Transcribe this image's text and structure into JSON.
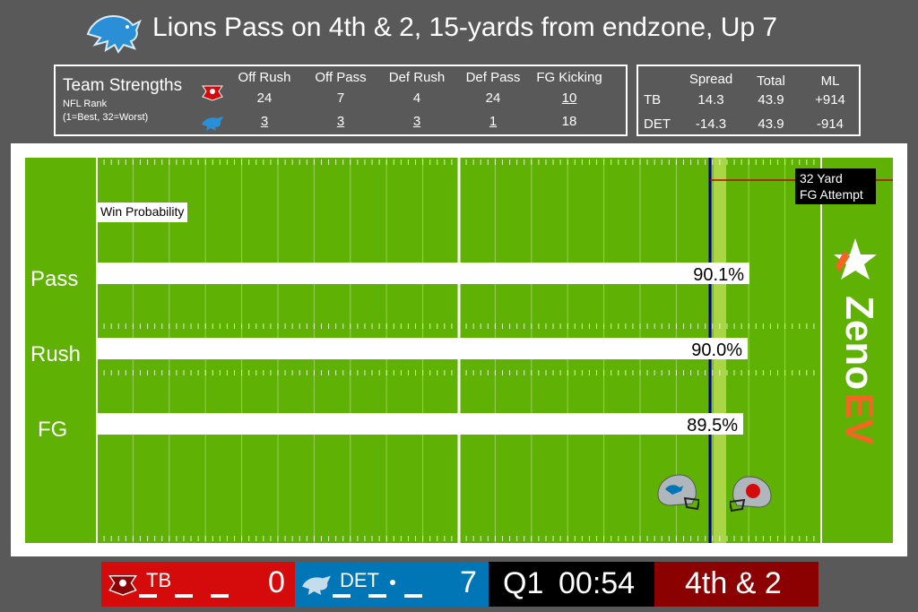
{
  "title": "Lions Pass on 4th & 2, 15-yards from endzone, Up 7",
  "strengths": {
    "title": "Team Strengths",
    "subtitle1": "NFL Rank",
    "subtitle2": "(1=Best, 32=Worst)",
    "columns": [
      "Off Rush",
      "Off Pass",
      "Def Rush",
      "Def Pass",
      "FG Kicking"
    ],
    "tb": [
      "24",
      "7",
      "4",
      "24",
      "10"
    ],
    "det": [
      "3",
      "3",
      "3",
      "1",
      "18"
    ]
  },
  "odds": {
    "columns": [
      "Spread",
      "Total",
      "ML"
    ],
    "tb": {
      "team": "TB",
      "values": [
        "14.3",
        "43.9",
        "+914"
      ]
    },
    "det": {
      "team": "DET",
      "values": [
        "-14.3",
        "43.9",
        "-914"
      ]
    }
  },
  "field": {
    "win_prob_label": "Win Probability",
    "fg_label_line1": "32 Yard",
    "fg_label_line2": "FG Attempt",
    "plays": [
      {
        "label": "Pass",
        "value": "90.1%",
        "pct": 90.1
      },
      {
        "label": "Rush",
        "value": "90.0%",
        "pct": 90.0
      },
      {
        "label": "FG",
        "value": "89.5%",
        "pct": 89.5
      }
    ]
  },
  "brand": {
    "part1": "Zeno",
    "part2": "EV"
  },
  "scoreboard": {
    "tb": {
      "abbr": "TB",
      "score": "0",
      "color": "#d50a0a"
    },
    "det": {
      "abbr": "DET",
      "score": "7",
      "color": "#0076b6"
    },
    "quarter": "Q1",
    "clock": "00:54",
    "down": "4th & 2",
    "down_color": "#8b0000"
  },
  "colors": {
    "field": "#5fb203",
    "line_of_scrimmage": "#00008b",
    "first_down": "#e8f27a"
  }
}
